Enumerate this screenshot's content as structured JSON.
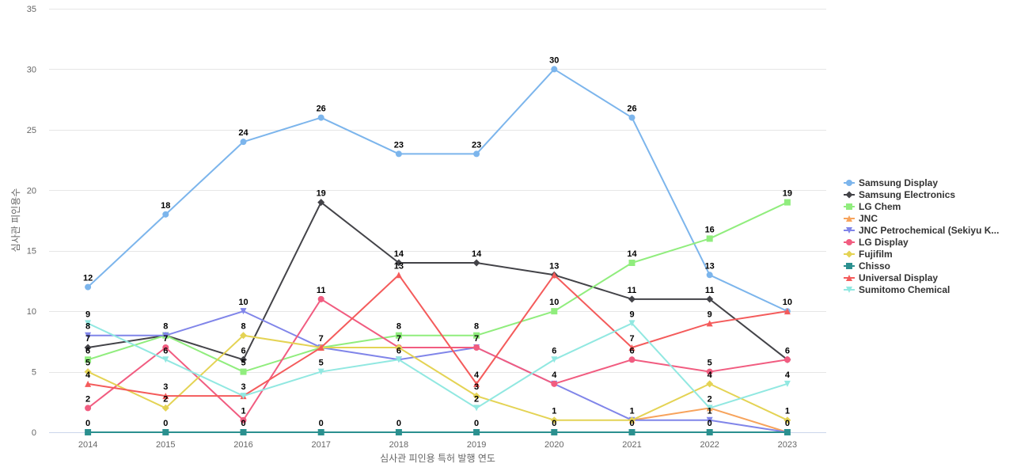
{
  "chart_data": {
    "type": "line",
    "xlabel": "심사관 피인용 특허 발행 연도",
    "ylabel": "심사관 피인용수",
    "ylim": [
      0,
      35
    ],
    "yticks": [
      0,
      5,
      10,
      15,
      20,
      25,
      30,
      35
    ],
    "categories": [
      "2014",
      "2015",
      "2016",
      "2017",
      "2018",
      "2019",
      "2020",
      "2021",
      "2022",
      "2023"
    ],
    "grid": "horizontal",
    "legend_position": "right",
    "series": [
      {
        "name": "Samsung Display",
        "color": "#7cb5ec",
        "marker": "circle",
        "values": [
          12,
          18,
          24,
          26,
          23,
          23,
          30,
          26,
          13,
          10
        ]
      },
      {
        "name": "Samsung Electronics",
        "color": "#434348",
        "marker": "diamond",
        "values": [
          7,
          8,
          6,
          19,
          14,
          14,
          13,
          11,
          11,
          6
        ]
      },
      {
        "name": "LG Chem",
        "color": "#90ed7d",
        "marker": "square",
        "values": [
          6,
          8,
          5,
          7,
          8,
          8,
          10,
          14,
          16,
          19
        ]
      },
      {
        "name": "JNC",
        "color": "#f7a35c",
        "marker": "triangle",
        "values": [
          null,
          null,
          null,
          null,
          null,
          null,
          null,
          1,
          2,
          0
        ]
      },
      {
        "name": "JNC Petrochemical (Sekiyu K...",
        "color": "#8085e9",
        "marker": "triangle-down",
        "values": [
          8,
          8,
          10,
          7,
          6,
          7,
          4,
          1,
          1,
          0
        ]
      },
      {
        "name": "LG Display",
        "color": "#f15c80",
        "marker": "circle",
        "values": [
          2,
          7,
          1,
          11,
          7,
          7,
          4,
          6,
          5,
          6
        ]
      },
      {
        "name": "Fujifilm",
        "color": "#e4d354",
        "marker": "diamond",
        "values": [
          5,
          2,
          8,
          7,
          7,
          3,
          1,
          1,
          4,
          1
        ]
      },
      {
        "name": "Chisso",
        "color": "#2b908f",
        "marker": "square",
        "values": [
          0,
          0,
          0,
          0,
          0,
          0,
          0,
          0,
          0,
          0
        ]
      },
      {
        "name": "Universal Display",
        "color": "#f45b5b",
        "marker": "triangle",
        "values": [
          4,
          3,
          3,
          7,
          13,
          4,
          13,
          7,
          9,
          10
        ]
      },
      {
        "name": "Sumitomo Chemical",
        "color": "#91e8e1",
        "marker": "triangle-down",
        "values": [
          9,
          6,
          3,
          5,
          6,
          2,
          6,
          9,
          2,
          4
        ]
      }
    ]
  }
}
